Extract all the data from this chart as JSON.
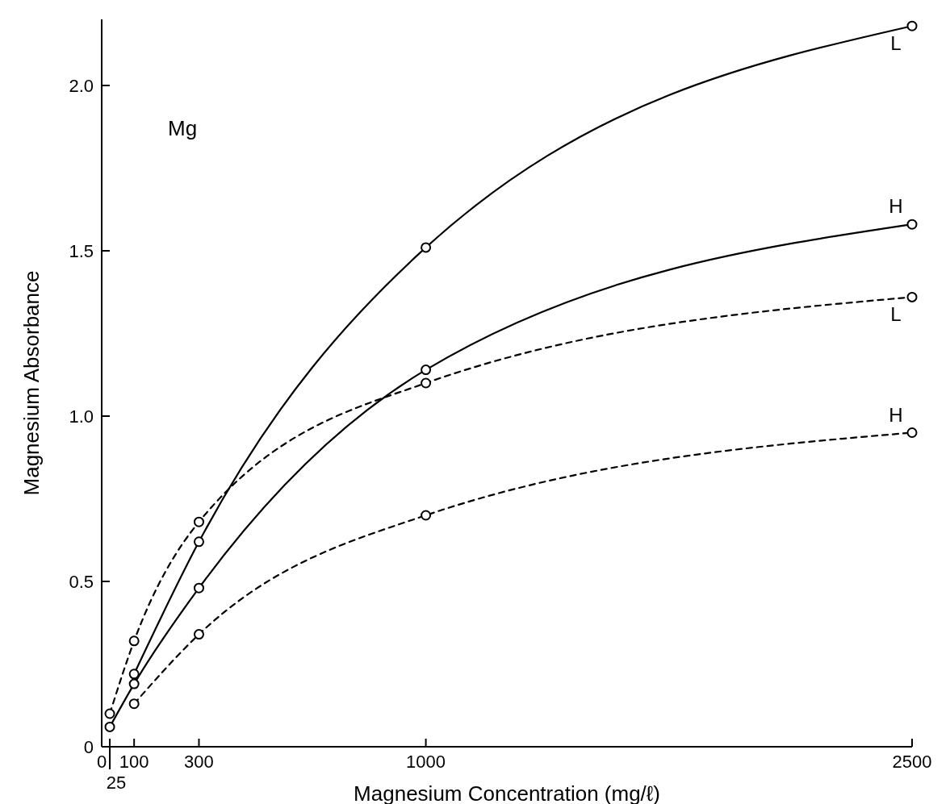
{
  "chart_data": {
    "type": "line",
    "xlabel": "Magnesium Concentration (mg/ℓ)",
    "ylabel": "Magnesium Absorbance",
    "annotations": [
      "Mg",
      "25"
    ],
    "x": [
      25,
      100,
      300,
      1000,
      2500
    ],
    "series": [
      {
        "name": "L",
        "color": "#000000",
        "line_style": "solid",
        "values": [
          null,
          0.22,
          0.62,
          1.51,
          2.18
        ]
      },
      {
        "name": "H",
        "color": "#000000",
        "line_style": "solid",
        "values": [
          0.06,
          0.19,
          0.48,
          1.14,
          1.58
        ]
      },
      {
        "name": "L",
        "color": "#000000",
        "line_style": "dashed",
        "values": [
          0.1,
          0.32,
          0.68,
          1.1,
          1.36
        ]
      },
      {
        "name": "H",
        "color": "#000000",
        "line_style": "dashed",
        "values": [
          null,
          0.13,
          0.34,
          0.7,
          0.95
        ]
      }
    ],
    "xlim": [
      0,
      2500
    ],
    "ylim": [
      0,
      2.2
    ],
    "xticks": [
      0,
      {
        "value": 25,
        "label": null
      },
      100,
      300,
      1000,
      2500
    ],
    "yticks": [
      0,
      0.5,
      {
        "value": 1,
        "label": "1.0"
      },
      1.5,
      {
        "value": 2,
        "label": "2.0"
      }
    ],
    "marker": "circle",
    "grid": false
  }
}
